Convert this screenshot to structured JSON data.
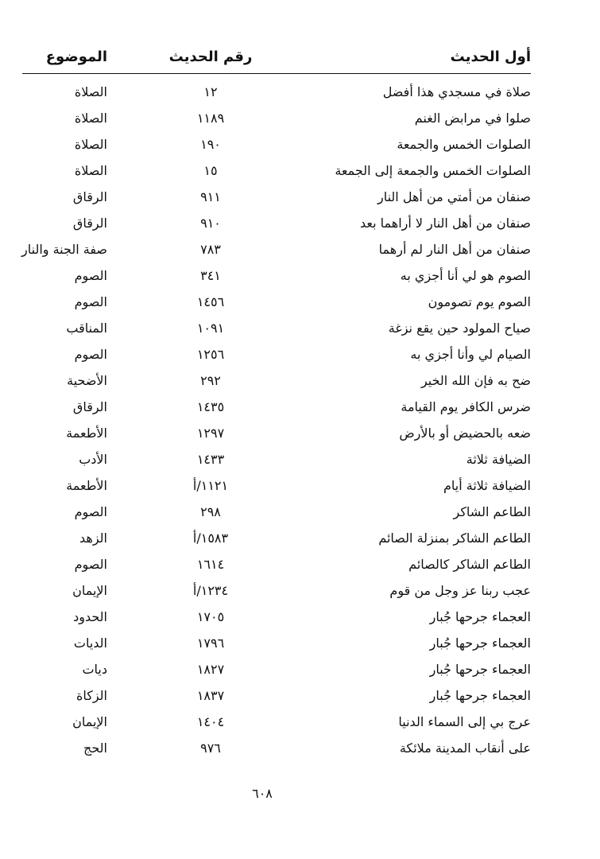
{
  "table": {
    "header": [
      "أول الحديث",
      "رقم الحديث",
      "الموضوع"
    ],
    "rows": [
      [
        "صلاة في مسجدي هذا أفضل",
        "١٢",
        "الصلاة"
      ],
      [
        "صلوا في مرابض الغنم",
        "١١٨٩",
        "الصلاة"
      ],
      [
        "الصلوات الخمس والجمعة",
        "١٩٠",
        "الصلاة"
      ],
      [
        "الصلوات الخمس والجمعة إلى الجمعة",
        "١٥",
        "الصلاة"
      ],
      [
        "صنفان من أمتي من أهل النار",
        "٩١١",
        "الرقاق"
      ],
      [
        "صنفان من أهل النار لا أراهما بعد",
        "٩١٠",
        "الرقاق"
      ],
      [
        "صنفان من أهل النار لم أرهما",
        "٧٨٣",
        "صفة الجنة والنار"
      ],
      [
        "الصوم هو لي أنا أجزي به",
        "٣٤١",
        "الصوم"
      ],
      [
        "الصوم يوم تصومون",
        "١٤٥٦",
        "الصوم"
      ],
      [
        "صياح المولود حين يقع نزغة",
        "١٠٩١",
        "المناقب"
      ],
      [
        "الصيام لي وأنا أجزي به",
        "١٢٥٦",
        "الصوم"
      ],
      [
        "ضح به فإن الله الخير",
        "٢٩٢",
        "الأضحية"
      ],
      [
        "ضرس الكافر يوم القيامة",
        "١٤٣٥",
        "الرقاق"
      ],
      [
        "ضعه بالحضيض أو بالأرض",
        "١٢٩٧",
        "الأطعمة"
      ],
      [
        "الضيافة ثلاثة",
        "١٤٣٣",
        "الأدب"
      ],
      [
        "الضيافة ثلاثة أيام",
        "١١٢١/أ",
        "الأطعمة"
      ],
      [
        "الطاعم الشاكر",
        "٢٩٨",
        "الصوم"
      ],
      [
        "الطاعم الشاكر بمنزلة الصائم",
        "١٥٨٣/أ",
        "الزهد"
      ],
      [
        "الطاعم الشاكر كالصائم",
        "١٦١٤",
        "الصوم"
      ],
      [
        "عجب ربنا عز وجل من قوم",
        "١٢٣٤/أ",
        "الإيمان"
      ],
      [
        "العجماء جرحها جُبار",
        "١٧٠٥",
        "الحدود"
      ],
      [
        "العجماء جرحها جُبار",
        "١٧٩٦",
        "الديات"
      ],
      [
        "العجماء جرحها جُبار",
        "١٨٢٧",
        "ديات"
      ],
      [
        "العجماء جرحها جُبار",
        "١٨٣٧",
        "الزكاة"
      ],
      [
        "عرج بي إلى السماء الدنيا",
        "١٤٠٤",
        "الإيمان"
      ],
      [
        "على أنقاب المدينة ملائكة",
        "٩٧٦",
        "الحج"
      ]
    ]
  },
  "footer": {
    "page_number": "٦٠٨"
  }
}
